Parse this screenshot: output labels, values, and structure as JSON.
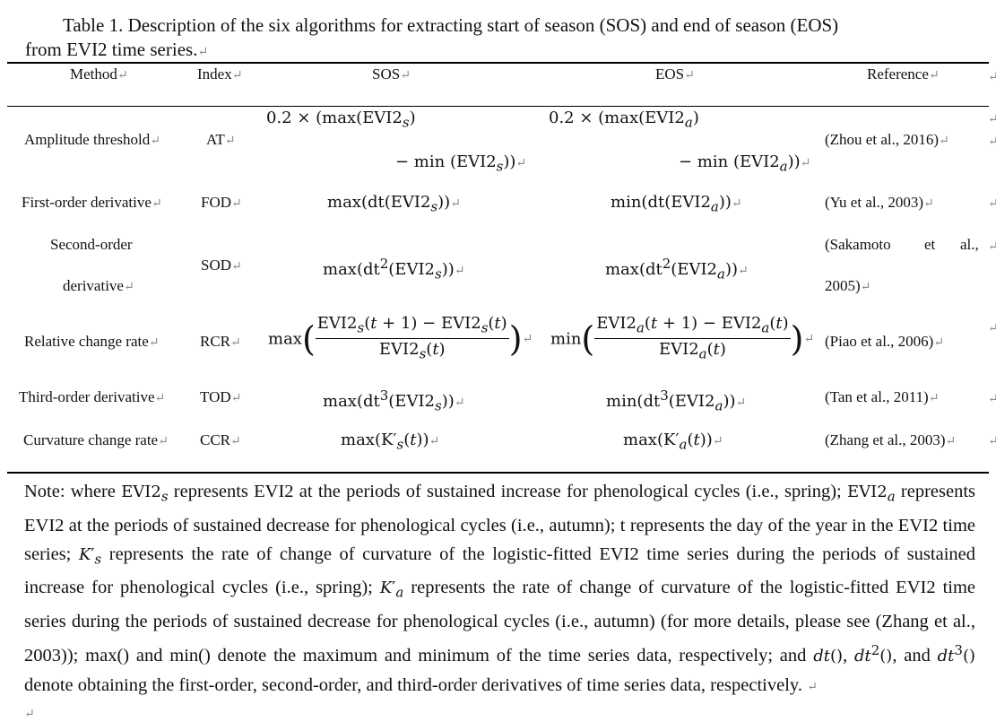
{
  "caption": {
    "line1": "Table 1. Description of the six algorithms for extracting start of season (SOS) and end of season (EOS)",
    "line2": "from EVI2 time series."
  },
  "table": {
    "headers": [
      "Method",
      "Index",
      "SOS",
      "EOS",
      "Reference"
    ],
    "rows": [
      {
        "method": "Amplitude threshold",
        "index": "AT",
        "sos_line1": "0.2 × (max(EVI2",
        "sos_line2": "− min (EVI2",
        "eos_line1": "0.2 × (max(EVI2",
        "eos_line2": "− min (EVI2",
        "reference": "(Zhou et al., 2016)"
      },
      {
        "method": "First-order derivative",
        "index": "FOD",
        "sos": "max(dt(EVI2",
        "eos": "min(dt(EVI2",
        "reference": "(Yu et al., 2003)"
      },
      {
        "method_line1": "Second-order",
        "method_line2": "derivative",
        "index": "SOD",
        "sos": "max(dt",
        "eos": "max(dt",
        "reference_line1": "(Sakamoto",
        "reference_line1b": "et",
        "reference_line1c": "al.,",
        "reference_line2": "2005)"
      },
      {
        "method": "Relative change rate",
        "index": "RCR",
        "sos_op": "max",
        "eos_op": "min",
        "reference": "(Piao et al., 2006)"
      },
      {
        "method": "Third-order derivative",
        "index": "TOD",
        "sos": "max(dt",
        "eos": "min(dt",
        "reference": "(Tan et al., 2011)"
      },
      {
        "method": "Curvature change rate",
        "index": "CCR",
        "sos": "max(K′",
        "eos": "max(K′",
        "reference": "(Zhang et al., 2003)"
      }
    ]
  },
  "note": {
    "part1": "Note: where ",
    "part2": " represents EVI2 at the periods of sustained increase for phenological cycles (i.e., spring); ",
    "part3": " represents EVI2 at the periods of sustained decrease for phenological cycles (i.e., autumn); t represents the day of the year in the EVI2 time series; ",
    "part4": " represents the rate of change of curvature of the logistic-fitted EVI2 time series during the periods of sustained increase for phenological cycles (i.e., spring); ",
    "part5": " represents the rate of change of curvature of the logistic-fitted EVI2 time series during the periods of sustained decrease for phenological cycles (i.e., autumn) (for more details, please see (Zhang et al., 2003)); max() and min() denote the maximum and minimum of the time series data, respectively; and ",
    "part6": ", ",
    "part7": ", and ",
    "part8": " denote obtaining the first-order, second-order, and third-order derivatives of time series data, respectively."
  }
}
